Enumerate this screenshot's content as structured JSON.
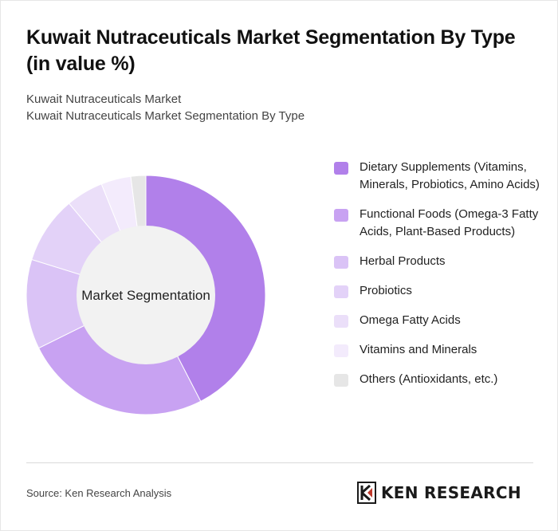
{
  "header": {
    "title": "Kuwait Nutraceuticals Market Segmentation By Type (in value %)",
    "subtitle_line1": "Kuwait Nutraceuticals Market",
    "subtitle_line2": "Kuwait Nutraceuticals Market Segmentation By Type"
  },
  "chart_data": {
    "type": "pie",
    "center_label": "Market Segmentation",
    "categories": [
      "Dietary Supplements (Vitamins, Minerals, Probiotics, Amino Acids)",
      "Functional Foods (Omega-3 Fatty Acids, Plant-Based Products)",
      "Herbal Products",
      "Probiotics",
      "Omega Fatty Acids",
      "Vitamins and Minerals",
      "Others (Antioxidants, etc.)"
    ],
    "values": [
      42,
      25,
      12,
      9,
      5,
      4,
      2
    ],
    "colors": [
      "#b180ea",
      "#c8a2f2",
      "#dac3f6",
      "#e3d2f8",
      "#ebdff9",
      "#f3ebfc",
      "#e6e6e6"
    ],
    "legend_position": "right"
  },
  "footer": {
    "source": "Source: Ken Research Analysis",
    "logo_text": "KEN RESEARCH"
  }
}
